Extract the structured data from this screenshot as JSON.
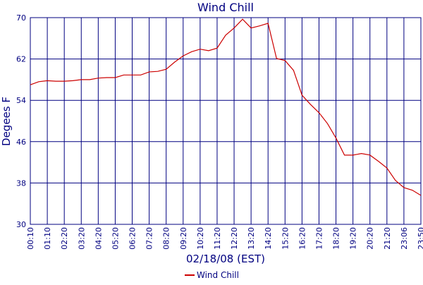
{
  "chart_data": {
    "type": "line",
    "title": "Wind Chill",
    "x_label": "02/18/08 (EST)",
    "y_label": "Degees F",
    "categories": [
      "00:10",
      null,
      "01:10",
      null,
      "02:20",
      null,
      "03:20",
      null,
      "04:20",
      null,
      "05:20",
      null,
      "06:20",
      null,
      "07:20",
      null,
      "08:20",
      null,
      "09:20",
      null,
      "10:20",
      null,
      "11:20",
      null,
      "12:20",
      null,
      "13:20",
      null,
      "14:20",
      null,
      "15:20",
      null,
      "16:20",
      null,
      "17:20",
      null,
      "18:20",
      null,
      "19:20",
      null,
      "20:20",
      null,
      "21:20",
      null,
      "23:06",
      null,
      "23:50"
    ],
    "series": [
      {
        "name": "Wind Chill",
        "color": "#cc0000",
        "values": [
          57.0,
          57.6,
          57.8,
          57.7,
          57.7,
          57.8,
          58.0,
          58.0,
          58.3,
          58.4,
          58.4,
          58.9,
          58.9,
          58.9,
          59.5,
          59.6,
          60.0,
          61.4,
          62.6,
          63.4,
          63.9,
          63.6,
          64.1,
          66.6,
          68.0,
          69.7,
          68.0,
          68.4,
          68.9,
          62.1,
          61.7,
          59.8,
          55.0,
          53.2,
          51.6,
          49.5,
          46.7,
          43.4,
          43.4,
          43.7,
          43.4,
          42.2,
          40.9,
          38.5,
          37.1,
          36.6,
          35.6
        ]
      }
    ],
    "ylim": [
      30,
      70
    ],
    "yticks": [
      30,
      38,
      46,
      54,
      62,
      70
    ],
    "grid": true,
    "legend": "bottom"
  }
}
